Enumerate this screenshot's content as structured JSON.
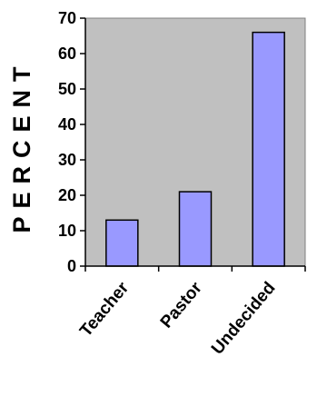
{
  "chart_data": {
    "type": "bar",
    "categories": [
      "Teacher",
      "Pastor",
      "Undecided"
    ],
    "values": [
      13,
      21,
      66
    ],
    "ylabel": "PERCENT",
    "xlabel": "",
    "ylim": [
      0,
      70
    ],
    "yticks": [
      0,
      10,
      20,
      30,
      40,
      50,
      60,
      70
    ],
    "grid": false,
    "legend": "none",
    "colors": {
      "plot_background": "#c0c0c0",
      "bar_fill": "#9999ff",
      "bar_stroke": "#000000"
    }
  }
}
